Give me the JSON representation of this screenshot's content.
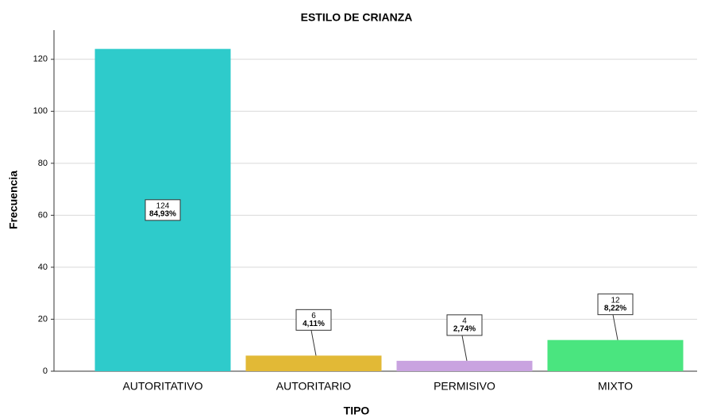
{
  "chart_data": {
    "type": "bar",
    "title": "ESTILO DE CRIANZA",
    "x_label": "TIPO",
    "y_label": "Frecuencia",
    "categories": [
      "AUTORITATIVO",
      "AUTORITARIO",
      "PERMISIVO",
      "MIXTO"
    ],
    "values": [
      124,
      6,
      4,
      12
    ],
    "percentages": [
      84.93,
      4.11,
      2.74,
      8.22
    ],
    "percentage_labels": [
      "84,93%",
      "4,11%",
      "2,74%",
      "8,22%"
    ],
    "colors": [
      "#2ecbcb",
      "#e2b936",
      "#c9a3e0",
      "#4ae57f"
    ],
    "ylim": [
      0,
      130
    ],
    "yticks": [
      0,
      20,
      40,
      60,
      80,
      100,
      120
    ],
    "grid": true
  }
}
